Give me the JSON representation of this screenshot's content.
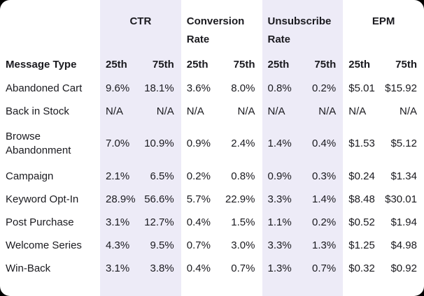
{
  "table": {
    "row_header": "Message Type",
    "groups": [
      {
        "label": "CTR",
        "shaded": true
      },
      {
        "label": "Conversion Rate",
        "shaded": false
      },
      {
        "label": "Unsubscribe Rate",
        "shaded": true
      },
      {
        "label": "EPM",
        "shaded": false
      }
    ],
    "percentile_labels": {
      "p25": "25th",
      "p75": "75th"
    },
    "rows": [
      {
        "type": "Abandoned Cart",
        "values": [
          "9.6%",
          "18.1%",
          "3.6%",
          "8.0%",
          "0.8%",
          "0.2%",
          "$5.01",
          "$15.92"
        ]
      },
      {
        "type": "Back in Stock",
        "values": [
          "N/A",
          "N/A",
          "N/A",
          "N/A",
          "N/A",
          "N/A",
          "N/A",
          "N/A"
        ]
      },
      {
        "type": "Browse Abandonment",
        "values": [
          "7.0%",
          "10.9%",
          "0.9%",
          "2.4%",
          "1.4%",
          "0.4%",
          "$1.53",
          "$5.12"
        ]
      },
      {
        "type": "Campaign",
        "values": [
          "2.1%",
          "6.5%",
          "0.2%",
          "0.8%",
          "0.9%",
          "0.3%",
          "$0.24",
          "$1.34"
        ]
      },
      {
        "type": "Keyword Opt-In",
        "values": [
          "28.9%",
          "56.6%",
          "5.7%",
          "22.9%",
          "3.3%",
          "1.4%",
          "$8.48",
          "$30.01"
        ]
      },
      {
        "type": "Post Purchase",
        "values": [
          "3.1%",
          "12.7%",
          "0.4%",
          "1.5%",
          "1.1%",
          "0.2%",
          "$0.52",
          "$1.94"
        ]
      },
      {
        "type": "Welcome Series",
        "values": [
          "4.3%",
          "9.5%",
          "0.7%",
          "3.0%",
          "3.3%",
          "1.3%",
          "$1.25",
          "$4.98"
        ]
      },
      {
        "type": "Win-Back",
        "values": [
          "3.1%",
          "3.8%",
          "0.4%",
          "0.7%",
          "1.3%",
          "0.7%",
          "$0.32",
          "$0.92"
        ]
      }
    ],
    "colors": {
      "shaded_column": "#edebf7",
      "card_background": "#ffffff",
      "text": "#1a1a1f",
      "page_background": "#000000"
    }
  }
}
